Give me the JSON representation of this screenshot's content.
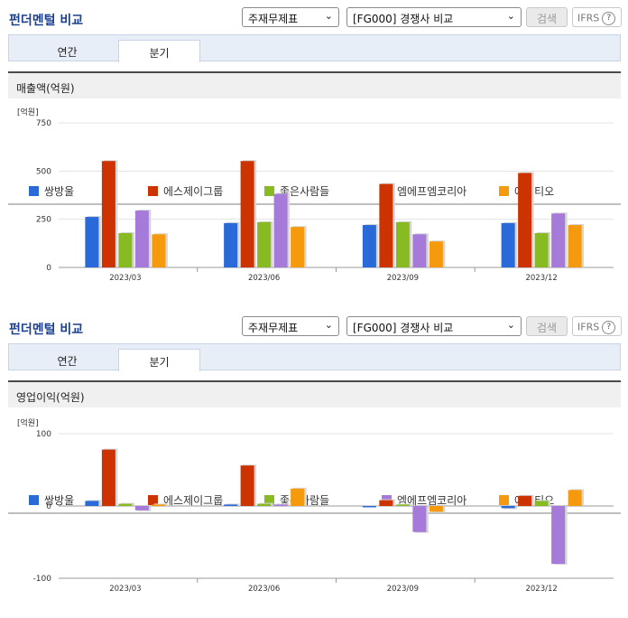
{
  "panels": [
    {
      "title": "펀더멘털 비교",
      "select1": "주재무제표",
      "select2": "[FG000] 경쟁사 비교",
      "search_label": "검색",
      "ifrs_label": "IFRS",
      "help_glyph": "?",
      "tabs": [
        {
          "label": "연간"
        },
        {
          "label": "분기"
        }
      ],
      "subtitle": "매출액(억원)",
      "chart_data": {
        "type": "bar",
        "title": "매출액(억원)",
        "unit_label": "[억원]",
        "categories": [
          "2023/03",
          "2023/06",
          "2023/09",
          "2023/12"
        ],
        "yticks": [
          0,
          250,
          500,
          750
        ],
        "ylim": [
          0,
          750
        ],
        "grid": true,
        "legend_position": "bottom",
        "series": [
          {
            "name": "쌍방울",
            "color": "#2a6ad8",
            "values": [
              262,
              230,
              220,
              230
            ]
          },
          {
            "name": "에스제이그룹",
            "color": "#cc3300",
            "values": [
              552,
              552,
              433,
              490
            ]
          },
          {
            "name": "좋은사람들",
            "color": "#88bb22",
            "values": [
              178,
              235,
              235,
              178
            ]
          },
          {
            "name": "엠에프엠코리아",
            "color": "#a57ad8",
            "values": [
              295,
              382,
              172,
              280
            ]
          },
          {
            "name": "에스티오",
            "color": "#f59a0c",
            "values": [
              172,
              210,
              135,
              220
            ]
          }
        ]
      }
    },
    {
      "title": "펀더멘털 비교",
      "select1": "주재무제표",
      "select2": "[FG000] 경쟁사 비교",
      "search_label": "검색",
      "ifrs_label": "IFRS",
      "help_glyph": "?",
      "tabs": [
        {
          "label": "연간"
        },
        {
          "label": "분기"
        }
      ],
      "subtitle": "영업이익(억원)",
      "chart_data": {
        "type": "bar",
        "title": "영업이익(억원)",
        "unit_label": "[억원]",
        "categories": [
          "2023/03",
          "2023/06",
          "2023/09",
          "2023/12"
        ],
        "yticks": [
          -100,
          0,
          100
        ],
        "ylim": [
          -100,
          100
        ],
        "grid": true,
        "legend_position": "bottom",
        "series": [
          {
            "name": "쌍방울",
            "color": "#2a6ad8",
            "values": [
              7,
              2,
              0,
              -3
            ]
          },
          {
            "name": "에스제이그룹",
            "color": "#cc3300",
            "values": [
              78,
              56,
              8,
              14
            ]
          },
          {
            "name": "좋은사람들",
            "color": "#88bb22",
            "values": [
              3,
              3,
              2,
              7
            ]
          },
          {
            "name": "엠에프엠코리아",
            "color": "#a57ad8",
            "values": [
              -6,
              2,
              -36,
              -80
            ]
          },
          {
            "name": "에스티오",
            "color": "#f59a0c",
            "values": [
              2,
              24,
              -8,
              22
            ]
          }
        ]
      }
    }
  ]
}
